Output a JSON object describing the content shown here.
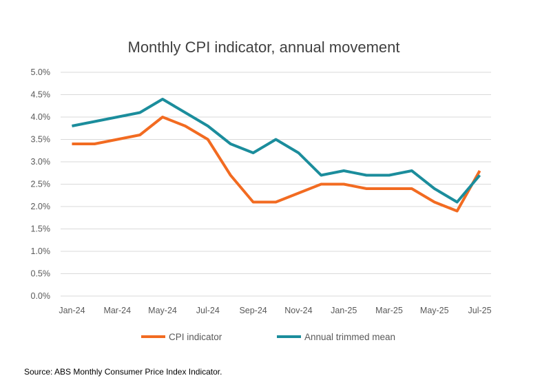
{
  "chart_data": {
    "type": "line",
    "title": "Monthly CPI indicator, annual movement",
    "categories": [
      "Jan-24",
      "Feb-24",
      "Mar-24",
      "Apr-24",
      "May-24",
      "Jun-24",
      "Jul-24",
      "Aug-24",
      "Sep-24",
      "Oct-24",
      "Nov-24",
      "Dec-24",
      "Jan-25",
      "Feb-25",
      "Mar-25",
      "Apr-25",
      "May-25",
      "Jun-25",
      "Jul-25"
    ],
    "x_tick_labels": [
      "Jan-24",
      "Mar-24",
      "May-24",
      "Jul-24",
      "Sep-24",
      "Nov-24",
      "Jan-25",
      "Mar-25",
      "May-25",
      "Jul-25"
    ],
    "y_tick_labels": [
      "0.0%",
      "0.5%",
      "1.0%",
      "1.5%",
      "2.0%",
      "2.5%",
      "3.0%",
      "3.5%",
      "4.0%",
      "4.5%",
      "5.0%"
    ],
    "ylim": [
      0,
      5
    ],
    "grid": true,
    "legend_position": "bottom",
    "series": [
      {
        "name": "CPI indicator",
        "color": "#f26b21",
        "values": [
          3.4,
          3.4,
          3.5,
          3.6,
          4.0,
          3.8,
          3.5,
          2.7,
          2.1,
          2.1,
          2.3,
          2.5,
          2.5,
          2.4,
          2.4,
          2.4,
          2.1,
          1.9,
          2.8
        ]
      },
      {
        "name": "Annual trimmed mean",
        "color": "#1b8d9c",
        "values": [
          3.8,
          3.9,
          4.0,
          4.1,
          4.4,
          4.1,
          3.8,
          3.4,
          3.2,
          3.5,
          3.2,
          2.7,
          2.8,
          2.7,
          2.7,
          2.8,
          2.4,
          2.1,
          2.7
        ]
      }
    ]
  },
  "source": "Source: ABS Monthly Consumer Price Index Indicator."
}
